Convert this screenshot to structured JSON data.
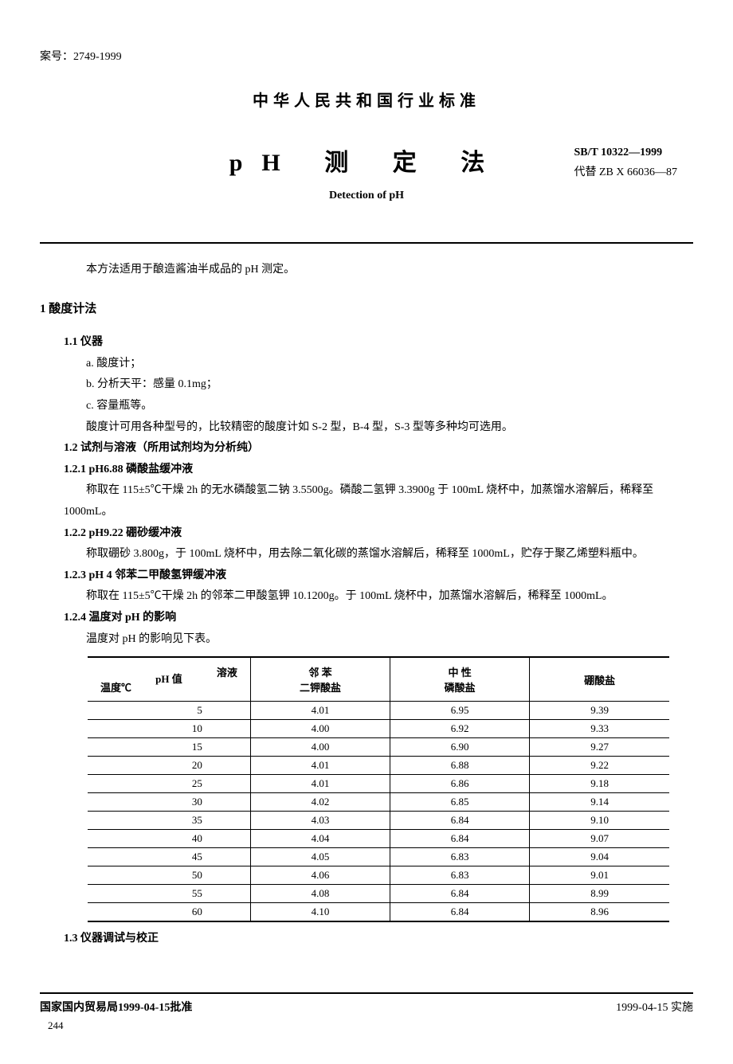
{
  "record_number": "案号：2749-1999",
  "main_header": "中华人民共和国行业标准",
  "title_main": "pH 测 定 法",
  "std_num": "SB/T 10322—1999",
  "replace": "代替 ZB X 66036—87",
  "subtitle": "Detection of pH",
  "intro": "本方法适用于酿造酱油半成品的 pH 测定。",
  "sec1": "1  酸度计法",
  "s11": "1.1  仪器",
  "s11a": "a. 酸度计；",
  "s11b": "b. 分析天平：感量 0.1mg；",
  "s11c": "c. 容量瓶等。",
  "s11note": "酸度计可用各种型号的，比较精密的酸度计如 S-2 型，B-4 型，S-3 型等多种均可选用。",
  "s12": "1.2  试剂与溶液（所用试剂均为分析纯）",
  "s121": "1.2.1  pH6.88 磷酸盐缓冲液",
  "s121body": "称取在 115±5℃干燥 2h 的无水磷酸氢二钠 3.5500g。磷酸二氢钾 3.3900g 于 100mL 烧杯中，加蒸馏水溶解后，稀释至 1000mL。",
  "s122": "1.2.2  pH9.22 硼砂缓冲液",
  "s122body": "称取硼砂 3.800g，于 100mL 烧杯中，用去除二氧化碳的蒸馏水溶解后，稀释至 1000mL，贮存于聚乙烯塑料瓶中。",
  "s123": "1.2.3  pH 4 邻苯二甲酸氢钾缓冲液",
  "s123body": "称取在 115±5℃干燥 2h 的邻苯二甲酸氢钾 10.1200g。于 100mL 烧杯中，加蒸馏水溶解后，稀释至 1000mL。",
  "s124": "1.2.4  温度对 pH 的影响",
  "s124body": "温度对 pH 的影响见下表。",
  "table": {
    "header": {
      "diag_top": "溶液",
      "diag_mid": "pH 值",
      "diag_bottom": "温度℃",
      "col2": "邻  苯\n二钾酸盐",
      "col3": "中  性\n磷酸盐",
      "col4": "硼酸盐"
    },
    "rows": [
      [
        "5",
        "4.01",
        "6.95",
        "9.39"
      ],
      [
        "10",
        "4.00",
        "6.92",
        "9.33"
      ],
      [
        "15",
        "4.00",
        "6.90",
        "9.27"
      ],
      [
        "20",
        "4.01",
        "6.88",
        "9.22"
      ],
      [
        "25",
        "4.01",
        "6.86",
        "9.18"
      ],
      [
        "30",
        "4.02",
        "6.85",
        "9.14"
      ],
      [
        "35",
        "4.03",
        "6.84",
        "9.10"
      ],
      [
        "40",
        "4.04",
        "6.84",
        "9.07"
      ],
      [
        "45",
        "4.05",
        "6.83",
        "9.04"
      ],
      [
        "50",
        "4.06",
        "6.83",
        "9.01"
      ],
      [
        "55",
        "4.08",
        "6.84",
        "8.99"
      ],
      [
        "60",
        "4.10",
        "6.84",
        "8.96"
      ]
    ]
  },
  "s13": "1.3  仪器调试与校正",
  "approve": "国家国内贸易局1999-04-15批准",
  "impl": "1999-04-15 实施",
  "page_num": "244"
}
